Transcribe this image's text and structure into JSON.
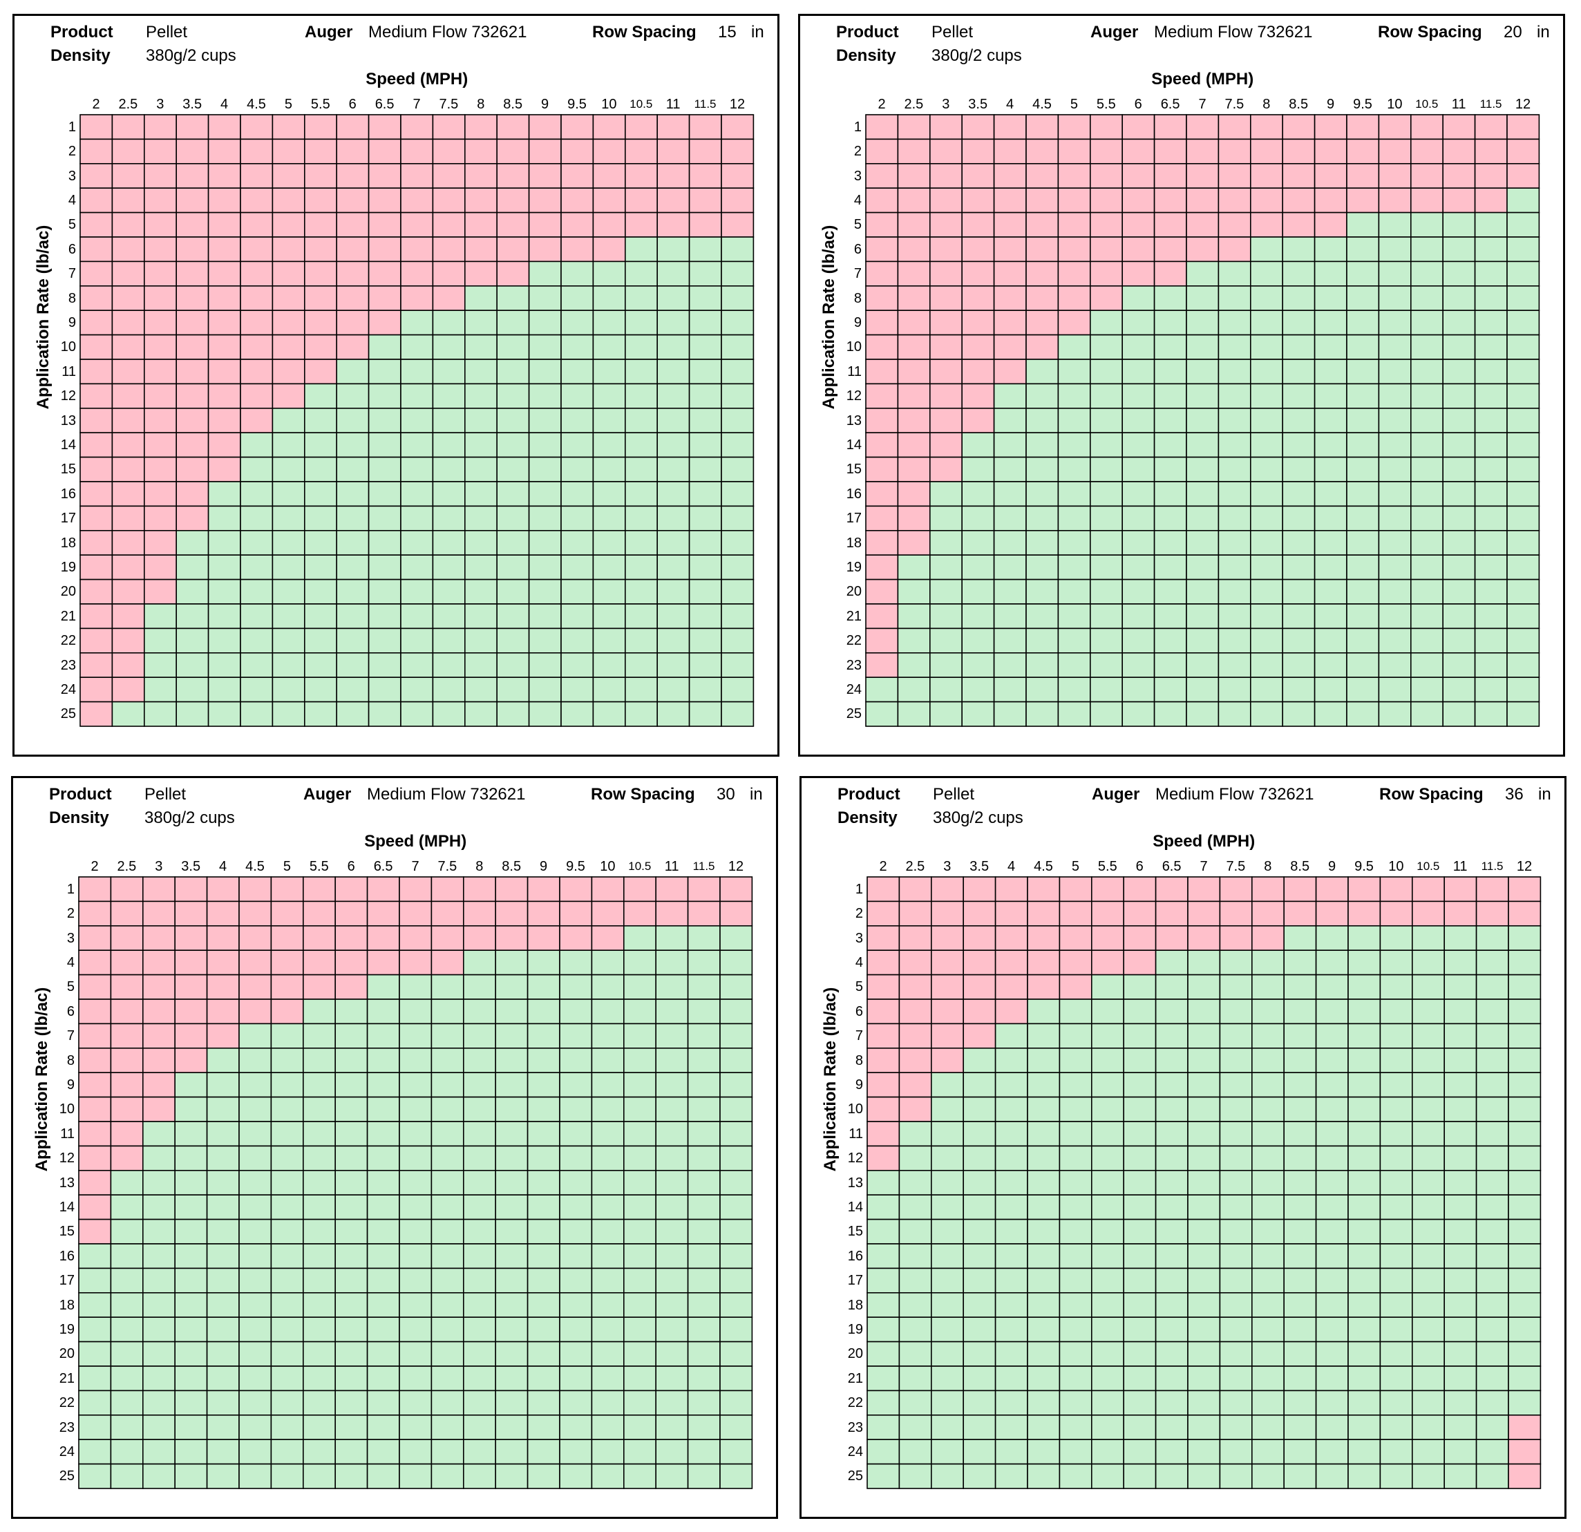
{
  "colors": {
    "below_range": "#ffc0cb",
    "in_range": "#c6efce",
    "grid": "#000000"
  },
  "chart_data": [
    {
      "type": "heatmap",
      "header": {
        "product_label": "Product",
        "product_value": "Pellet",
        "density_label": "Density",
        "density_value": "380g/2 cups",
        "auger_label": "Auger",
        "auger_value": "Medium Flow 732621",
        "row_spacing_label": "Row Spacing",
        "row_spacing_value": "15",
        "row_spacing_unit": "in"
      },
      "xlabel": "Speed (MPH)",
      "ylabel": "Application Rate (lb/ac)",
      "x": [
        "2",
        "2.5",
        "3",
        "3.5",
        "4",
        "4.5",
        "5",
        "5.5",
        "6",
        "6.5",
        "7",
        "7.5",
        "8",
        "8.5",
        "9",
        "9.5",
        "10",
        "10.5",
        "11",
        "11.5",
        "12"
      ],
      "y": [
        "1",
        "2",
        "3",
        "4",
        "5",
        "6",
        "7",
        "8",
        "9",
        "10",
        "11",
        "12",
        "13",
        "14",
        "15",
        "16",
        "17",
        "18",
        "19",
        "20",
        "21",
        "22",
        "23",
        "24",
        "25"
      ],
      "pink_max_rate_by_speed": [
        25,
        24,
        20,
        17,
        15,
        13,
        12,
        11,
        10,
        9,
        8,
        8,
        7,
        7,
        6,
        6,
        6,
        5,
        5,
        5,
        5
      ],
      "green_max_rate_by_speed": [
        25,
        25,
        25,
        25,
        25,
        25,
        25,
        25,
        25,
        25,
        25,
        25,
        25,
        25,
        25,
        25,
        25,
        25,
        25,
        25,
        25
      ]
    },
    {
      "type": "heatmap",
      "header": {
        "product_label": "Product",
        "product_value": "Pellet",
        "density_label": "Density",
        "density_value": "380g/2 cups",
        "auger_label": "Auger",
        "auger_value": "Medium Flow 732621",
        "row_spacing_label": "Row Spacing",
        "row_spacing_value": "20",
        "row_spacing_unit": "in"
      },
      "xlabel": "Speed (MPH)",
      "ylabel": "Application Rate (lb/ac)",
      "x": [
        "2",
        "2.5",
        "3",
        "3.5",
        "4",
        "4.5",
        "5",
        "5.5",
        "6",
        "6.5",
        "7",
        "7.5",
        "8",
        "8.5",
        "9",
        "9.5",
        "10",
        "10.5",
        "11",
        "11.5",
        "12"
      ],
      "y": [
        "1",
        "2",
        "3",
        "4",
        "5",
        "6",
        "7",
        "8",
        "9",
        "10",
        "11",
        "12",
        "13",
        "14",
        "15",
        "16",
        "17",
        "18",
        "19",
        "20",
        "21",
        "22",
        "23",
        "24",
        "25"
      ],
      "pink_max_rate_by_speed": [
        23,
        18,
        15,
        13,
        11,
        10,
        9,
        8,
        7,
        7,
        6,
        6,
        5,
        5,
        5,
        4,
        4,
        4,
        4,
        4,
        3
      ],
      "green_max_rate_by_speed": [
        25,
        25,
        25,
        25,
        25,
        25,
        25,
        25,
        25,
        25,
        25,
        25,
        25,
        25,
        25,
        25,
        25,
        25,
        25,
        25,
        25
      ]
    },
    {
      "type": "heatmap",
      "header": {
        "product_label": "Product",
        "product_value": "Pellet",
        "density_label": "Density",
        "density_value": "380g/2 cups",
        "auger_label": "Auger",
        "auger_value": "Medium Flow 732621",
        "row_spacing_label": "Row Spacing",
        "row_spacing_value": "30",
        "row_spacing_unit": "in"
      },
      "xlabel": "Speed (MPH)",
      "ylabel": "Application Rate (lb/ac)",
      "x": [
        "2",
        "2.5",
        "3",
        "3.5",
        "4",
        "4.5",
        "5",
        "5.5",
        "6",
        "6.5",
        "7",
        "7.5",
        "8",
        "8.5",
        "9",
        "9.5",
        "10",
        "10.5",
        "11",
        "11.5",
        "12"
      ],
      "y": [
        "1",
        "2",
        "3",
        "4",
        "5",
        "6",
        "7",
        "8",
        "9",
        "10",
        "11",
        "12",
        "13",
        "14",
        "15",
        "16",
        "17",
        "18",
        "19",
        "20",
        "21",
        "22",
        "23",
        "24",
        "25"
      ],
      "pink_max_rate_by_speed": [
        15,
        12,
        10,
        8,
        7,
        6,
        6,
        5,
        5,
        4,
        4,
        4,
        3,
        3,
        3,
        3,
        3,
        2,
        2,
        2,
        2
      ],
      "green_max_rate_by_speed": [
        25,
        25,
        25,
        25,
        25,
        25,
        25,
        25,
        25,
        25,
        25,
        25,
        25,
        25,
        25,
        25,
        25,
        25,
        25,
        25,
        25
      ]
    },
    {
      "type": "heatmap",
      "header": {
        "product_label": "Product",
        "product_value": "Pellet",
        "density_label": "Density",
        "density_value": "380g/2 cups",
        "auger_label": "Auger",
        "auger_value": "Medium Flow 732621",
        "row_spacing_label": "Row Spacing",
        "row_spacing_value": "36",
        "row_spacing_unit": "in"
      },
      "xlabel": "Speed (MPH)",
      "ylabel": "Application Rate (lb/ac)",
      "x": [
        "2",
        "2.5",
        "3",
        "3.5",
        "4",
        "4.5",
        "5",
        "5.5",
        "6",
        "6.5",
        "7",
        "7.5",
        "8",
        "8.5",
        "9",
        "9.5",
        "10",
        "10.5",
        "11",
        "11.5",
        "12"
      ],
      "y": [
        "1",
        "2",
        "3",
        "4",
        "5",
        "6",
        "7",
        "8",
        "9",
        "10",
        "11",
        "12",
        "13",
        "14",
        "15",
        "16",
        "17",
        "18",
        "19",
        "20",
        "21",
        "22",
        "23",
        "24",
        "25"
      ],
      "pink_max_rate_by_speed": [
        12,
        10,
        8,
        7,
        6,
        5,
        5,
        4,
        4,
        3,
        3,
        3,
        3,
        2,
        2,
        2,
        2,
        2,
        2,
        2,
        2
      ],
      "green_max_rate_by_speed": [
        25,
        25,
        25,
        25,
        25,
        25,
        25,
        25,
        25,
        25,
        25,
        25,
        25,
        25,
        25,
        25,
        25,
        25,
        25,
        25,
        22
      ]
    }
  ]
}
